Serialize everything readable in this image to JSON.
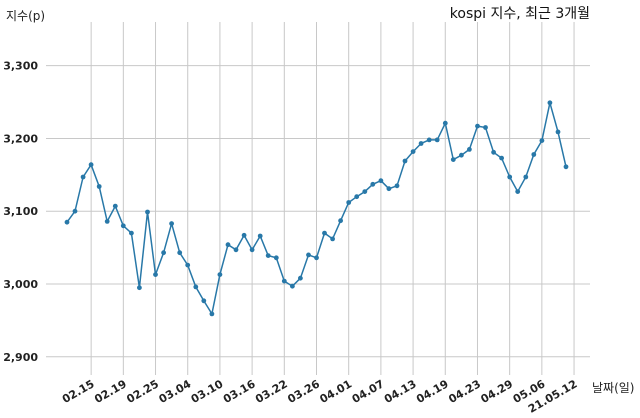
{
  "chart_data": {
    "type": "line",
    "title": "kospi 지수, 최근 3개월",
    "ylabel": "지수(p)",
    "xlabel": "날짜(일)",
    "ylim": [
      2875,
      3360
    ],
    "yticks": [
      2900,
      3000,
      3100,
      3200,
      3300
    ],
    "ytick_labels": [
      "2,900",
      "3,000",
      "3,100",
      "3,200",
      "3,300"
    ],
    "xtick_labels": [
      "02.15",
      "02.19",
      "02.25",
      "03.04",
      "03.10",
      "03.16",
      "03.22",
      "03.26",
      "04.01",
      "04.07",
      "04.13",
      "04.19",
      "04.23",
      "04.29",
      "05.06",
      "21.05.12"
    ],
    "xtick_index": [
      3,
      7,
      11,
      15,
      19,
      23,
      27,
      31,
      35,
      39,
      43,
      47,
      51,
      55,
      59,
      63
    ],
    "grid": true,
    "line_color": "#2878a8",
    "series": [
      {
        "values": [
          3085,
          3100,
          3147,
          3164,
          3134,
          3086,
          3107,
          3080,
          3070,
          2995,
          3099,
          3013,
          3043,
          3083,
          3043,
          3026,
          2996,
          2977,
          2959,
          3013,
          3054,
          3047,
          3067,
          3047,
          3066,
          3039,
          3036,
          3004,
          2997,
          3008,
          3040,
          3036,
          3070,
          3062,
          3087,
          3112,
          3120,
          3127,
          3137,
          3142,
          3131,
          3135,
          3169,
          3182,
          3193,
          3198,
          3198,
          3221,
          3171,
          3177,
          3185,
          3217,
          3215,
          3181,
          3173,
          3147,
          3127,
          3147,
          3178,
          3197,
          3249,
          3209,
          3161
        ]
      }
    ]
  }
}
